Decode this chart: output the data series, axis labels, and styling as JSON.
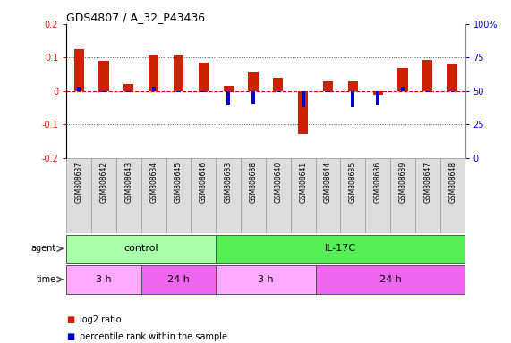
{
  "title": "GDS4807 / A_32_P43436",
  "samples": [
    "GSM808637",
    "GSM808642",
    "GSM808643",
    "GSM808634",
    "GSM808645",
    "GSM808646",
    "GSM808633",
    "GSM808638",
    "GSM808640",
    "GSM808641",
    "GSM808644",
    "GSM808635",
    "GSM808636",
    "GSM808639",
    "GSM808647",
    "GSM808648"
  ],
  "log2_ratio": [
    0.125,
    0.09,
    0.02,
    0.105,
    0.105,
    0.085,
    0.015,
    0.055,
    0.04,
    -0.13,
    0.03,
    0.03,
    -0.01,
    0.07,
    0.093,
    0.08
  ],
  "pct_rank_offset": [
    0.012,
    -0.002,
    -0.002,
    0.012,
    -0.002,
    -0.002,
    -0.04,
    -0.038,
    -0.003,
    -0.048,
    -0.003,
    -0.048,
    -0.04,
    0.012,
    -0.002,
    -0.003
  ],
  "ylim_left": [
    -0.2,
    0.2
  ],
  "ylim_right": [
    0,
    100
  ],
  "yticks_left": [
    -0.2,
    -0.1,
    0.0,
    0.1,
    0.2
  ],
  "yticks_right": [
    0,
    25,
    50,
    75,
    100
  ],
  "ytick_labels_left": [
    "-0.2",
    "-0.1",
    "0",
    "0.1",
    "0.2"
  ],
  "ytick_labels_right": [
    "0",
    "25",
    "50",
    "75",
    "100%"
  ],
  "hlines": [
    0.1,
    -0.1
  ],
  "agent_groups": [
    {
      "label": "control",
      "start": 0,
      "end": 6,
      "color": "#AAFFAA"
    },
    {
      "label": "IL-17C",
      "start": 6,
      "end": 16,
      "color": "#55EE55"
    }
  ],
  "time_groups": [
    {
      "label": "3 h",
      "start": 0,
      "end": 3,
      "color": "#FFAAFF"
    },
    {
      "label": "24 h",
      "start": 3,
      "end": 6,
      "color": "#EE66EE"
    },
    {
      "label": "3 h",
      "start": 6,
      "end": 10,
      "color": "#FFAAFF"
    },
    {
      "label": "24 h",
      "start": 10,
      "end": 16,
      "color": "#EE66EE"
    }
  ],
  "bar_color": "#CC2200",
  "pct_color": "#0000CC",
  "sample_bg": "#DDDDDD",
  "plot_bg": "#FFFFFF",
  "zero_line_color": "#CC0000",
  "grid_style": ":",
  "grid_color": "#555555",
  "legend_items": [
    "log2 ratio",
    "percentile rank within the sample"
  ]
}
